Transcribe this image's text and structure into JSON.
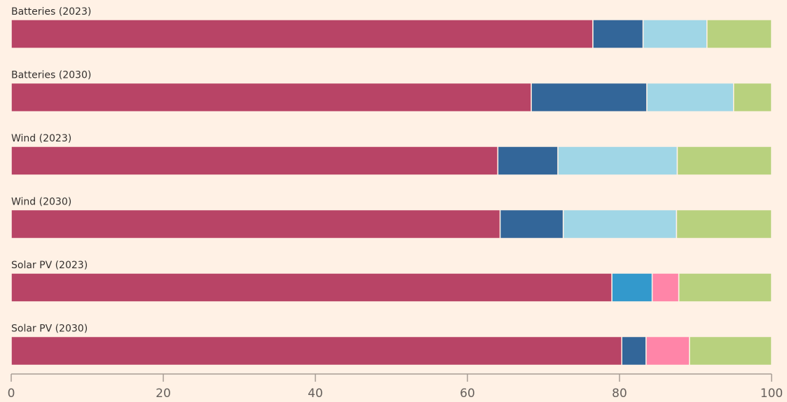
{
  "chart_data": {
    "type": "stacked-bar",
    "orientation": "horizontal",
    "categories": [
      "Batteries (2023)",
      "Batteries (2030)",
      "Wind (2023)",
      "Wind (2030)",
      "Solar PV (2023)",
      "Solar PV (2030)"
    ],
    "series": [
      {
        "color": "#b84466",
        "values": [
          76.5,
          68.4,
          64.0,
          64.3,
          79.0,
          80.3
        ]
      },
      {
        "color": "#336699",
        "values": [
          6.6,
          15.2,
          7.9,
          8.3,
          0,
          3.2
        ]
      },
      {
        "color": "#3399cc",
        "values": [
          0,
          0,
          0,
          0,
          5.3,
          0
        ]
      },
      {
        "color": "#a0d6e6",
        "values": [
          8.4,
          11.4,
          15.7,
          14.9,
          0,
          0
        ]
      },
      {
        "color": "#ff85a8",
        "values": [
          0,
          0,
          0,
          0,
          3.5,
          5.7
        ]
      },
      {
        "color": "#b8d17e",
        "values": [
          8.5,
          5.0,
          12.4,
          12.5,
          12.2,
          10.8
        ]
      }
    ],
    "xlim": [
      0,
      100
    ],
    "xticks": [
      0,
      20,
      40,
      60,
      80,
      100
    ]
  }
}
